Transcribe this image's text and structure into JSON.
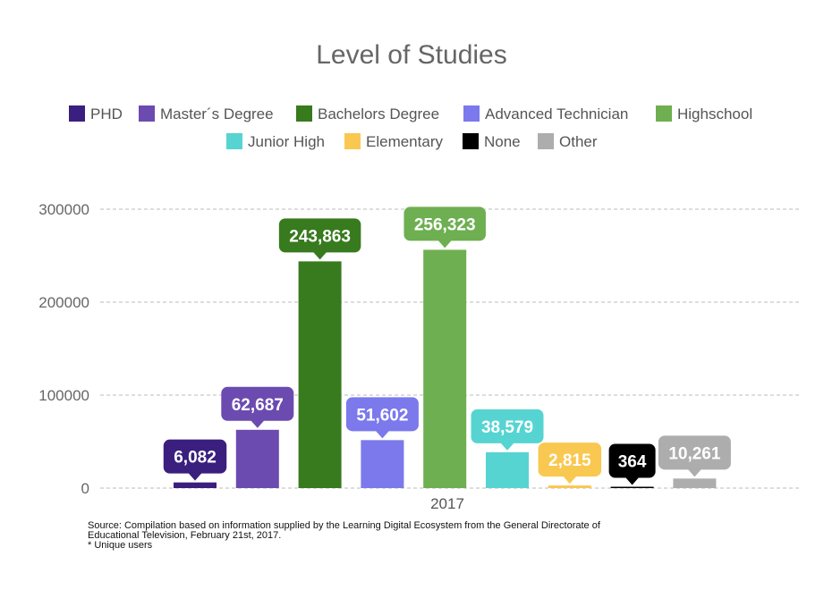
{
  "chart_data": {
    "type": "bar",
    "title": "Level of Studies",
    "categories": [
      "2017"
    ],
    "series": [
      {
        "name": "PHD",
        "values": [
          6082
        ],
        "label": "6,082",
        "color": "#3a1f7e"
      },
      {
        "name": "Master´s Degree",
        "values": [
          62687
        ],
        "label": "62,687",
        "color": "#6c4bb0"
      },
      {
        "name": "Bachelors Degree",
        "values": [
          243863
        ],
        "label": "243,863",
        "color": "#387a1e"
      },
      {
        "name": "Advanced Technician",
        "values": [
          51602
        ],
        "label": "51,602",
        "color": "#7b79ec"
      },
      {
        "name": "Highschool",
        "values": [
          256323
        ],
        "label": "256,323",
        "color": "#6eaf51"
      },
      {
        "name": "Junior High",
        "values": [
          38579
        ],
        "label": "38,579",
        "color": "#56d4d2"
      },
      {
        "name": "Elementary",
        "values": [
          2815
        ],
        "label": "2,815",
        "color": "#f9c850"
      },
      {
        "name": "None",
        "values": [
          364
        ],
        "label": "364",
        "color": "#000000"
      },
      {
        "name": "Other",
        "values": [
          10261
        ],
        "label": "10,261",
        "color": "#adadad"
      }
    ],
    "ylim": [
      0,
      300000
    ],
    "yticks": [
      "0",
      "100000",
      "200000",
      "300000"
    ],
    "grid": true,
    "legend_position": "top"
  },
  "footer": {
    "source_line1": "Source: Compilation based on information supplied by the Learning Digital Ecosystem from the General Directorate of",
    "source_line2": "Educational Television, February 21st, 2017.",
    "note": "* Unique users"
  }
}
